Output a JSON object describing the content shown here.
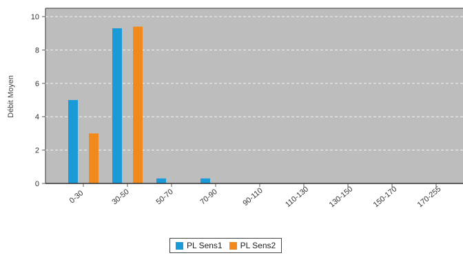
{
  "chart_data": {
    "type": "bar",
    "title": "",
    "xlabel": "",
    "ylabel": "Débit Moyen",
    "ylim": [
      0,
      10.5
    ],
    "yticks": [
      0,
      2,
      4,
      6,
      8,
      10
    ],
    "grid": true,
    "legend_position": "bottom-center",
    "categories": [
      "0-30",
      "30-50",
      "50-70",
      "70-90",
      "90-110",
      "110-130",
      "130-150",
      "150-170",
      "170-255"
    ],
    "series": [
      {
        "name": "PL Sens1",
        "color": "#1a9ad6",
        "values": [
          5.0,
          9.3,
          0.3,
          0.3,
          0,
          0,
          0,
          0,
          0
        ]
      },
      {
        "name": "PL Sens2",
        "color": "#f08a1c",
        "values": [
          3.0,
          9.4,
          0,
          0,
          0,
          0,
          0,
          0,
          0
        ]
      }
    ],
    "plot_background": "#bdbdbd"
  }
}
